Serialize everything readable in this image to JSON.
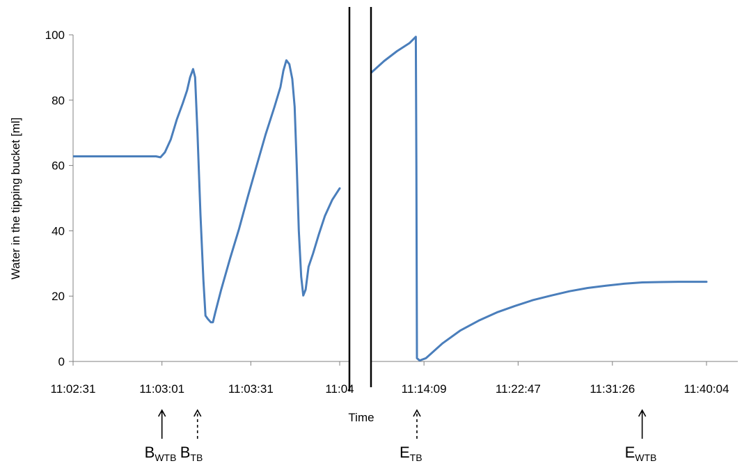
{
  "chart_data": {
    "type": "line",
    "xlabel": "Time",
    "ylabel": "Water in the tipping bucket [ml]",
    "ylim": [
      0,
      100
    ],
    "y_ticks": [
      0,
      20,
      40,
      60,
      80,
      100
    ],
    "axis_break": true,
    "colors": {
      "series": "#4a7ebb",
      "axis": "#808080",
      "break_lines": "#000000"
    },
    "segments": [
      {
        "name": "left",
        "x_range_seconds": [
          0,
          97
        ],
        "ticks": [
          {
            "t": 0,
            "label": "11:02:31"
          },
          {
            "t": 30,
            "label": "11:03:01"
          },
          {
            "t": 60,
            "label": "11:03:31"
          },
          {
            "t": 90,
            "label": "11:04"
          }
        ],
        "points": [
          [
            0,
            62.8
          ],
          [
            28,
            62.8
          ],
          [
            29.5,
            62.5
          ],
          [
            31,
            64
          ],
          [
            33,
            68
          ],
          [
            35,
            74
          ],
          [
            37,
            79
          ],
          [
            38.5,
            83
          ],
          [
            39.5,
            87
          ],
          [
            40.5,
            89.5
          ],
          [
            41.2,
            87
          ],
          [
            42,
            70
          ],
          [
            43,
            45
          ],
          [
            44,
            25
          ],
          [
            44.7,
            14
          ],
          [
            45.5,
            13
          ],
          [
            46.5,
            12
          ],
          [
            47.2,
            12
          ],
          [
            48,
            15
          ],
          [
            50,
            22
          ],
          [
            53,
            31.5
          ],
          [
            56,
            40.5
          ],
          [
            59,
            50.5
          ],
          [
            62,
            60
          ],
          [
            65,
            69.5
          ],
          [
            68,
            78
          ],
          [
            70,
            84
          ],
          [
            71,
            89
          ],
          [
            72,
            92.2
          ],
          [
            73,
            91
          ],
          [
            74,
            86.5
          ],
          [
            74.8,
            78
          ],
          [
            75.5,
            60
          ],
          [
            76.2,
            40
          ],
          [
            77,
            26
          ],
          [
            77.7,
            20.2
          ],
          [
            78.5,
            22
          ],
          [
            79.5,
            29
          ],
          [
            81,
            33
          ],
          [
            83,
            39
          ],
          [
            85,
            44.5
          ],
          [
            87.5,
            49.5
          ],
          [
            90,
            53
          ]
        ]
      },
      {
        "name": "right",
        "x_range_seconds": [
          40004,
          41600
        ],
        "ticks": [
          {
            "t": 40449,
            "label": "11:14:09"
          },
          {
            "t": 40967,
            "label": "11:22:47"
          },
          {
            "t": 41486,
            "label": "11:31:26"
          },
          {
            "t": 42004,
            "label": "11:40:04"
          }
        ],
        "points": [
          [
            40004,
            76.5
          ],
          [
            40010,
            78.5
          ],
          [
            40030,
            80.5
          ],
          [
            40080,
            84
          ],
          [
            40150,
            88
          ],
          [
            40230,
            92
          ],
          [
            40300,
            95
          ],
          [
            40370,
            97.5
          ],
          [
            40404,
            99.4
          ],
          [
            40407,
            60
          ],
          [
            40410,
            1
          ],
          [
            40425,
            0.3
          ],
          [
            40460,
            1
          ],
          [
            40550,
            5.5
          ],
          [
            40650,
            9.5
          ],
          [
            40750,
            12.5
          ],
          [
            40850,
            15
          ],
          [
            40950,
            17
          ],
          [
            41050,
            18.8
          ],
          [
            41150,
            20.2
          ],
          [
            41250,
            21.5
          ],
          [
            41350,
            22.5
          ],
          [
            41450,
            23.2
          ],
          [
            41550,
            23.8
          ],
          [
            41650,
            24.2
          ],
          [
            41750,
            24.3
          ],
          [
            41850,
            24.4
          ],
          [
            42004,
            24.4
          ]
        ]
      }
    ],
    "annotations": [
      {
        "label": "B",
        "sub": "WTB",
        "segment": "left",
        "t": 30,
        "arrow": "solid"
      },
      {
        "label": "B",
        "sub": "TB",
        "segment": "left",
        "t": 42,
        "arrow": "dashed"
      },
      {
        "label": "E",
        "sub": "TB",
        "segment": "right",
        "t": 40410,
        "arrow": "dashed"
      },
      {
        "label": "E",
        "sub": "WTB",
        "segment": "right",
        "t": 41650,
        "arrow": "solid"
      }
    ]
  }
}
